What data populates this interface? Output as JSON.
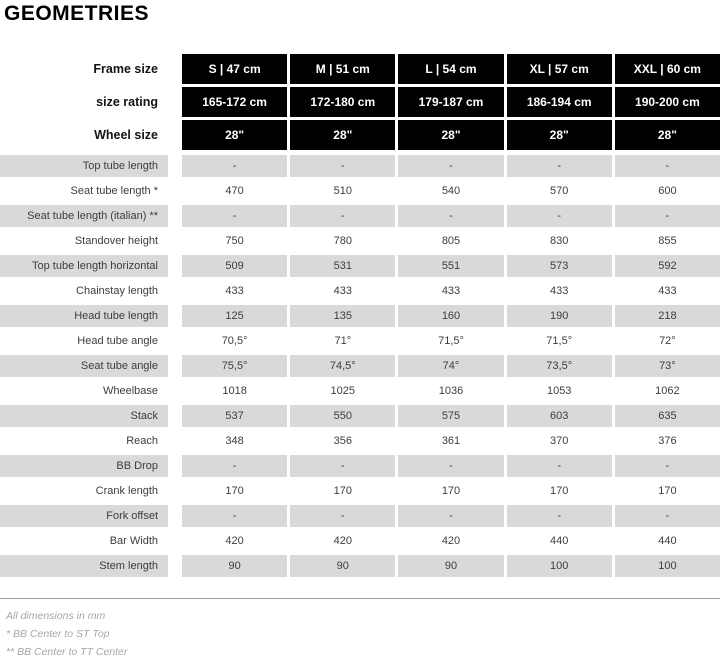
{
  "page": {
    "title": "GEOMETRIES"
  },
  "colors": {
    "header_bg": "#000000",
    "header_text": "#ffffff",
    "alt_row_bg": "#d9d9d9",
    "body_text": "#3d3d3d",
    "footnote_text": "#a6a6a6",
    "divider": "#9a9a9a"
  },
  "chart_data": {
    "type": "table",
    "title": "GEOMETRIES",
    "legend_position": "none",
    "header_rows": [
      {
        "label": "Frame size",
        "values": [
          "S | 47 cm",
          "M | 51 cm",
          "L | 54 cm",
          "XL | 57 cm",
          "XXL | 60 cm"
        ]
      },
      {
        "label": "size rating",
        "values": [
          "165-172 cm",
          "172-180 cm",
          "179-187 cm",
          "186-194 cm",
          "190-200 cm"
        ]
      },
      {
        "label": "Wheel size",
        "values": [
          "28\"",
          "28\"",
          "28\"",
          "28\"",
          "28\""
        ]
      }
    ],
    "rows": [
      {
        "label": "Top tube length",
        "values": [
          "-",
          "-",
          "-",
          "-",
          "-"
        ]
      },
      {
        "label": "Seat tube length *",
        "values": [
          "470",
          "510",
          "540",
          "570",
          "600"
        ]
      },
      {
        "label": "Seat tube length (italian) **",
        "values": [
          "-",
          "-",
          "-",
          "-",
          "-"
        ]
      },
      {
        "label": "Standover height",
        "values": [
          "750",
          "780",
          "805",
          "830",
          "855"
        ]
      },
      {
        "label": "Top tube length horizontal",
        "values": [
          "509",
          "531",
          "551",
          "573",
          "592"
        ]
      },
      {
        "label": "Chainstay length",
        "values": [
          "433",
          "433",
          "433",
          "433",
          "433"
        ]
      },
      {
        "label": "Head tube length",
        "values": [
          "125",
          "135",
          "160",
          "190",
          "218"
        ]
      },
      {
        "label": "Head tube angle",
        "values": [
          "70,5°",
          "71°",
          "71,5°",
          "71,5°",
          "72°"
        ]
      },
      {
        "label": "Seat tube angle",
        "values": [
          "75,5°",
          "74,5°",
          "74°",
          "73,5°",
          "73°"
        ]
      },
      {
        "label": "Wheelbase",
        "values": [
          "1018",
          "1025",
          "1036",
          "1053",
          "1062"
        ]
      },
      {
        "label": "Stack",
        "values": [
          "537",
          "550",
          "575",
          "603",
          "635"
        ]
      },
      {
        "label": "Reach",
        "values": [
          "348",
          "356",
          "361",
          "370",
          "376"
        ]
      },
      {
        "label": "BB Drop",
        "values": [
          "-",
          "-",
          "-",
          "-",
          "-"
        ]
      },
      {
        "label": "Crank length",
        "values": [
          "170",
          "170",
          "170",
          "170",
          "170"
        ]
      },
      {
        "label": "Fork offset",
        "values": [
          "-",
          "-",
          "-",
          "-",
          "-"
        ]
      },
      {
        "label": "Bar Width",
        "values": [
          "420",
          "420",
          "420",
          "440",
          "440"
        ]
      },
      {
        "label": "Stem length",
        "values": [
          "90",
          "90",
          "90",
          "100",
          "100"
        ]
      }
    ],
    "notes": [
      "All dimensions in mm",
      "* BB Center to ST Top",
      "** BB Center to TT Center"
    ]
  }
}
